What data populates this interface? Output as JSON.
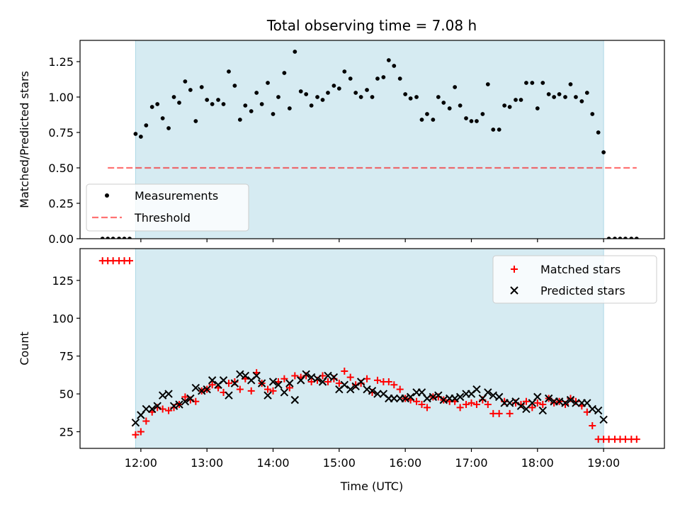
{
  "chart_data": {
    "title": "Total observing time = 7.08 h",
    "colors": {
      "shade": "#add8e6",
      "measurement": "#000000",
      "threshold": "#ff0000",
      "matched": "#ff0000",
      "predicted": "#000000"
    },
    "xlabel": "Time (UTC)",
    "xlim": [
      11.08,
      19.92
    ],
    "xticks": [
      12,
      13,
      14,
      15,
      16,
      17,
      18,
      19
    ],
    "xtick_labels": [
      "12:00",
      "13:00",
      "14:00",
      "15:00",
      "16:00",
      "17:00",
      "18:00",
      "19:00"
    ],
    "observing_window": [
      11.92,
      19.0
    ],
    "panels": [
      {
        "type": "scatter",
        "ylabel": "Matched/Predicted stars",
        "ylim": [
          0,
          1.4
        ],
        "yticks": [
          0,
          0.25,
          0.5,
          0.75,
          1.0,
          1.25
        ],
        "ytick_labels": [
          "0.00",
          "0.25",
          "0.50",
          "0.75",
          "1.00",
          "1.25"
        ],
        "legend": {
          "position": "lower-left",
          "entries": [
            "Measurements",
            "Threshold"
          ]
        },
        "threshold": {
          "name": "Threshold",
          "value": 0.5,
          "x_range": [
            11.5,
            19.5
          ]
        },
        "measurements": {
          "name": "Measurements",
          "x": [
            11.42,
            11.5,
            11.58,
            11.67,
            11.75,
            11.83,
            11.92,
            12.0,
            12.08,
            12.17,
            12.25,
            12.33,
            12.42,
            12.5,
            12.58,
            12.67,
            12.75,
            12.83,
            12.92,
            13.0,
            13.08,
            13.17,
            13.25,
            13.33,
            13.42,
            13.5,
            13.58,
            13.67,
            13.75,
            13.83,
            13.92,
            14.0,
            14.08,
            14.17,
            14.25,
            14.33,
            14.42,
            14.5,
            14.58,
            14.67,
            14.75,
            14.83,
            14.92,
            15.0,
            15.08,
            15.17,
            15.25,
            15.33,
            15.42,
            15.5,
            15.58,
            15.67,
            15.75,
            15.83,
            15.92,
            16.0,
            16.08,
            16.17,
            16.25,
            16.33,
            16.42,
            16.5,
            16.58,
            16.67,
            16.75,
            16.83,
            16.92,
            17.0,
            17.08,
            17.17,
            17.25,
            17.33,
            17.42,
            17.5,
            17.58,
            17.67,
            17.75,
            17.83,
            17.92,
            18.0,
            18.08,
            18.17,
            18.25,
            18.33,
            18.42,
            18.5,
            18.58,
            18.67,
            18.75,
            18.83,
            18.92,
            19.0,
            19.08,
            19.17,
            19.25,
            19.33,
            19.42,
            19.5
          ],
          "y": [
            0,
            0,
            0,
            0,
            0,
            0,
            0.74,
            0.72,
            0.8,
            0.93,
            0.95,
            0.85,
            0.78,
            1.0,
            0.96,
            1.11,
            1.05,
            0.83,
            1.07,
            0.98,
            0.95,
            0.98,
            0.95,
            1.18,
            1.08,
            0.84,
            0.94,
            0.9,
            1.03,
            0.95,
            1.1,
            0.88,
            1.0,
            1.17,
            0.92,
            1.32,
            1.04,
            1.02,
            0.94,
            1.0,
            0.98,
            1.03,
            1.08,
            1.06,
            1.18,
            1.13,
            1.03,
            1.0,
            1.05,
            1.0,
            1.13,
            1.14,
            1.26,
            1.22,
            1.13,
            1.02,
            0.99,
            1.0,
            0.84,
            0.88,
            0.84,
            1.0,
            0.96,
            0.92,
            1.07,
            0.94,
            0.85,
            0.83,
            0.83,
            0.88,
            1.09,
            0.77,
            0.77,
            0.94,
            0.93,
            0.98,
            0.98,
            1.1,
            1.1,
            0.92,
            1.1,
            1.02,
            1.0,
            1.02,
            1.0,
            1.09,
            1.0,
            0.97,
            1.03,
            0.88,
            0.75,
            0.61,
            0,
            0,
            0,
            0,
            0,
            0
          ]
        }
      },
      {
        "type": "scatter",
        "ylabel": "Count",
        "ylim": [
          14,
          146
        ],
        "yticks": [
          25,
          50,
          75,
          100,
          125
        ],
        "ytick_labels": [
          "25",
          "50",
          "75",
          "100",
          "125"
        ],
        "legend": {
          "position": "upper-right",
          "entries": [
            "Matched stars",
            "Predicted stars"
          ]
        },
        "series": [
          {
            "name": "Matched stars",
            "marker": "plus",
            "x": [
              11.42,
              11.5,
              11.58,
              11.67,
              11.75,
              11.83,
              11.92,
              12.0,
              12.08,
              12.17,
              12.25,
              12.33,
              12.42,
              12.5,
              12.58,
              12.67,
              12.75,
              12.83,
              12.92,
              13.0,
              13.08,
              13.17,
              13.25,
              13.33,
              13.42,
              13.5,
              13.58,
              13.67,
              13.75,
              13.83,
              13.92,
              14.0,
              14.08,
              14.17,
              14.25,
              14.33,
              14.42,
              14.5,
              14.58,
              14.67,
              14.75,
              14.83,
              14.92,
              15.0,
              15.08,
              15.17,
              15.25,
              15.33,
              15.42,
              15.5,
              15.58,
              15.67,
              15.75,
              15.83,
              15.92,
              16.0,
              16.08,
              16.17,
              16.25,
              16.33,
              16.42,
              16.5,
              16.58,
              16.67,
              16.75,
              16.83,
              16.92,
              17.0,
              17.08,
              17.17,
              17.25,
              17.33,
              17.42,
              17.5,
              17.58,
              17.67,
              17.75,
              17.83,
              17.92,
              18.0,
              18.08,
              18.17,
              18.25,
              18.33,
              18.42,
              18.5,
              18.58,
              18.67,
              18.75,
              18.83,
              18.92,
              19.0,
              19.08,
              19.17,
              19.25,
              19.33,
              19.42,
              19.5
            ],
            "y": [
              138,
              138,
              138,
              138,
              138,
              138,
              23,
              25,
              32,
              38,
              41,
              40,
              39,
              41,
              43,
              48,
              46,
              45,
              52,
              53,
              56,
              54,
              51,
              57,
              58,
              53,
              60,
              52,
              64,
              57,
              53,
              52,
              58,
              60,
              54,
              62,
              61,
              62,
              58,
              59,
              62,
              58,
              60,
              57,
              65,
              61,
              56,
              57,
              60,
              51,
              59,
              58,
              58,
              56,
              53,
              47,
              46,
              45,
              43,
              41,
              48,
              48,
              46,
              45,
              45,
              41,
              43,
              44,
              43,
              46,
              43,
              37,
              37,
              45,
              37,
              44,
              43,
              45,
              41,
              44,
              43,
              47,
              44,
              45,
              43,
              47,
              45,
              42,
              38,
              29,
              20,
              20,
              20,
              20,
              20,
              20,
              20,
              20
            ]
          },
          {
            "name": "Predicted stars",
            "marker": "x",
            "x": [
              11.92,
              12.0,
              12.08,
              12.17,
              12.25,
              12.33,
              12.42,
              12.5,
              12.58,
              12.67,
              12.75,
              12.83,
              12.92,
              13.0,
              13.08,
              13.17,
              13.25,
              13.33,
              13.42,
              13.5,
              13.58,
              13.67,
              13.75,
              13.83,
              13.92,
              14.0,
              14.08,
              14.17,
              14.25,
              14.33,
              14.42,
              14.5,
              14.58,
              14.67,
              14.75,
              14.83,
              14.92,
              15.0,
              15.08,
              15.17,
              15.25,
              15.33,
              15.42,
              15.5,
              15.58,
              15.67,
              15.75,
              15.83,
              15.92,
              16.0,
              16.08,
              16.17,
              16.25,
              16.33,
              16.42,
              16.5,
              16.58,
              16.67,
              16.75,
              16.83,
              16.92,
              17.0,
              17.08,
              17.17,
              17.25,
              17.33,
              17.42,
              17.5,
              17.58,
              17.67,
              17.75,
              17.83,
              17.92,
              18.0,
              18.08,
              18.17,
              18.25,
              18.33,
              18.42,
              18.5,
              18.58,
              18.67,
              18.75,
              18.83,
              18.92,
              19.0
            ],
            "y": [
              31,
              36,
              40,
              40,
              42,
              49,
              50,
              42,
              43,
              45,
              47,
              54,
              52,
              53,
              59,
              56,
              59,
              49,
              57,
              63,
              62,
              59,
              62,
              57,
              49,
              58,
              56,
              51,
              57,
              46,
              59,
              63,
              61,
              60,
              58,
              62,
              61,
              53,
              56,
              53,
              55,
              58,
              53,
              52,
              50,
              50,
              47,
              47,
              47,
              47,
              48,
              51,
              51,
              47,
              48,
              49,
              46,
              47,
              47,
              48,
              50,
              50,
              53,
              47,
              51,
              49,
              48,
              44,
              44,
              45,
              42,
              40,
              44,
              48,
              39,
              47,
              45,
              45,
              44,
              46,
              44,
              44,
              44,
              40,
              39,
              33
            ]
          }
        ]
      }
    ]
  }
}
